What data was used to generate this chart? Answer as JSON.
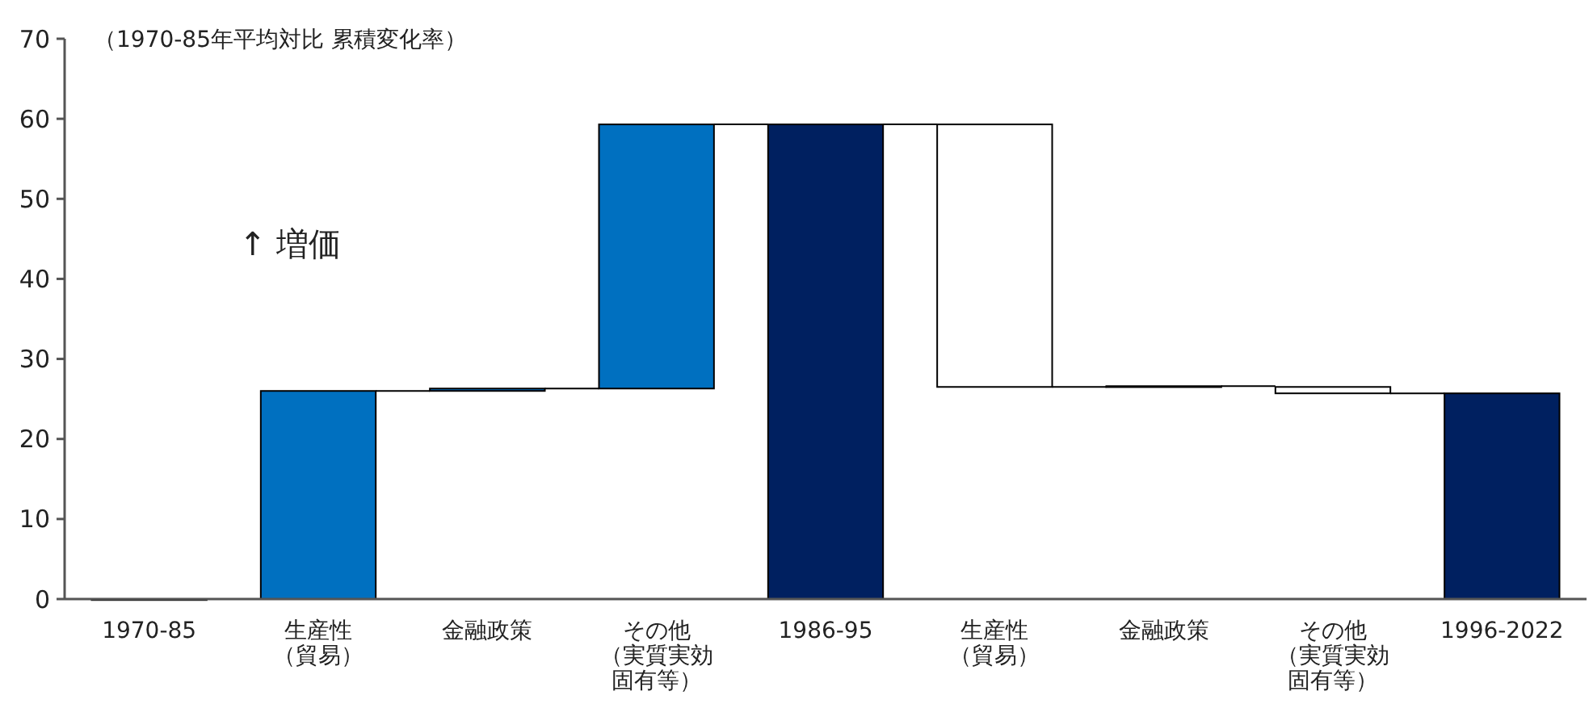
{
  "chart_data": {
    "type": "bar",
    "categories": [
      "1970-85",
      "生産性（貿易）",
      "金融政策",
      "その他（実質実効固有等）",
      "1986-95",
      "生産性（貿易）",
      "金融政策",
      "その他（実質実効固有等）",
      "1996-2022"
    ],
    "values": [
      0,
      26.0,
      0.3,
      33.0,
      59.3,
      -32.8,
      0.1,
      -0.8,
      25.7
    ],
    "base": [
      0,
      0,
      26.0,
      26.3,
      0,
      59.3,
      26.5,
      26.5,
      0
    ],
    "colors": [
      "#002060",
      "#0070c0",
      "#0070c0",
      "#0070c0",
      "#002060",
      "#ffffff",
      "#002060",
      "#ffffff",
      "#002060"
    ],
    "ylim": [
      0,
      70
    ],
    "yticks": [
      0,
      10,
      20,
      30,
      40,
      50,
      60,
      70
    ],
    "annotations": [
      "（1970-85年平均対比 累積変化率）",
      "↑ 増価"
    ],
    "grid": false
  }
}
